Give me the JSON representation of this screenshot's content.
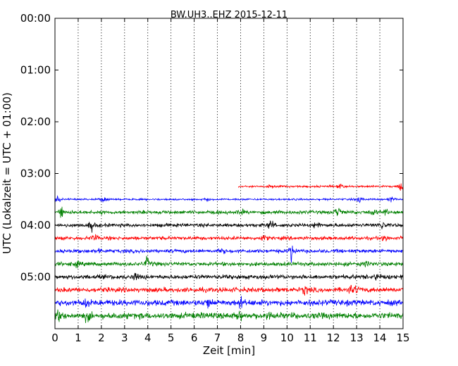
{
  "chart_data": {
    "type": "line",
    "title": "BW.UH3..EHZ 2015-12-11",
    "xlabel": "Zeit  [min]",
    "ylabel": "UTC (Lokalzeit = UTC + 01:00)",
    "xlim": [
      0,
      15
    ],
    "x_ticks": [
      "0",
      "1",
      "2",
      "3",
      "4",
      "5",
      "6",
      "7",
      "8",
      "9",
      "10",
      "11",
      "12",
      "13",
      "14",
      "15"
    ],
    "y_ticks": [
      {
        "label": "00:00",
        "minutes": 0
      },
      {
        "label": "01:00",
        "minutes": 60
      },
      {
        "label": "02:00",
        "minutes": 120
      },
      {
        "label": "03:00",
        "minutes": 180
      },
      {
        "label": "04:00",
        "minutes": 240
      },
      {
        "label": "05:00",
        "minutes": 300
      }
    ],
    "ylim_minutes": [
      0,
      360
    ],
    "y_inverted": true,
    "vertical_grid": "dotted at each minute",
    "color_cycle": [
      "#ff0000",
      "#0000ff",
      "#008000",
      "#000000"
    ],
    "series": [
      {
        "start_utc": "03:15",
        "color": "#ff0000",
        "x_start": 7.9,
        "amplitude": 0.5,
        "events": [
          {
            "x": 9.3,
            "a": 0.7
          },
          {
            "x": 12.3,
            "a": 0.9
          },
          {
            "x": 14.9,
            "a": 2.0
          }
        ]
      },
      {
        "start_utc": "03:30",
        "color": "#0000ff",
        "x_start": 0,
        "amplitude": 0.45,
        "events": [
          {
            "x": 0.1,
            "a": 1.5
          },
          {
            "x": 2.1,
            "a": 1.4
          },
          {
            "x": 6.5,
            "a": 0.7
          },
          {
            "x": 13.1,
            "a": 1.3
          },
          {
            "x": 14.5,
            "a": 1.1
          }
        ]
      },
      {
        "start_utc": "03:45",
        "color": "#008000",
        "x_start": 0,
        "amplitude": 0.9,
        "events": [
          {
            "x": 0.25,
            "a": 2.6
          },
          {
            "x": 8.0,
            "a": 1.1
          },
          {
            "x": 12.2,
            "a": 2.4
          },
          {
            "x": 13.7,
            "a": 1.4
          },
          {
            "x": 14.2,
            "a": 1.4
          }
        ]
      },
      {
        "start_utc": "04:00",
        "color": "#000000",
        "x_start": 0,
        "amplitude": 0.9,
        "events": [
          {
            "x": 1.6,
            "a": 2.2
          },
          {
            "x": 9.3,
            "a": 2.0
          },
          {
            "x": 11.3,
            "a": 1.5
          },
          {
            "x": 14.1,
            "a": 2.0
          }
        ]
      },
      {
        "start_utc": "04:15",
        "color": "#ff0000",
        "x_start": 0,
        "amplitude": 0.9,
        "events": [
          {
            "x": 1.7,
            "a": 1.8
          },
          {
            "x": 9.0,
            "a": 1.0
          },
          {
            "x": 14.2,
            "a": 1.5
          }
        ]
      },
      {
        "start_utc": "04:30",
        "color": "#0000ff",
        "x_start": 0,
        "amplitude": 0.9,
        "events": [
          {
            "x": 10.2,
            "a": 4.5
          },
          {
            "x": 7.2,
            "a": 1.0
          },
          {
            "x": 1.9,
            "a": 1.0
          }
        ]
      },
      {
        "start_utc": "04:45",
        "color": "#008000",
        "x_start": 0,
        "amplitude": 1.0,
        "events": [
          {
            "x": 4.0,
            "a": 2.8
          },
          {
            "x": 0.9,
            "a": 1.3
          },
          {
            "x": 13.5,
            "a": 1.2
          }
        ]
      },
      {
        "start_utc": "05:00",
        "color": "#000000",
        "x_start": 0,
        "amplitude": 1.1,
        "events": [
          {
            "x": 3.5,
            "a": 1.4
          },
          {
            "x": 13.9,
            "a": 1.4
          }
        ]
      },
      {
        "start_utc": "05:15",
        "color": "#ff0000",
        "x_start": 0,
        "amplitude": 1.2,
        "events": [
          {
            "x": 10.8,
            "a": 2.0
          },
          {
            "x": 12.7,
            "a": 1.8
          },
          {
            "x": 13.0,
            "a": 1.5
          }
        ]
      },
      {
        "start_utc": "05:30",
        "color": "#0000ff",
        "x_start": 0,
        "amplitude": 1.5,
        "events": [
          {
            "x": 1.4,
            "a": 2.2
          },
          {
            "x": 6.6,
            "a": 2.0
          },
          {
            "x": 8.0,
            "a": 1.8
          }
        ]
      },
      {
        "start_utc": "05:45",
        "color": "#008000",
        "x_start": 0,
        "amplitude": 1.6,
        "events": [
          {
            "x": 0.2,
            "a": 1.8
          },
          {
            "x": 1.4,
            "a": 1.8
          },
          {
            "x": 7.9,
            "a": 1.8
          },
          {
            "x": 9.2,
            "a": 1.4
          }
        ]
      }
    ]
  }
}
